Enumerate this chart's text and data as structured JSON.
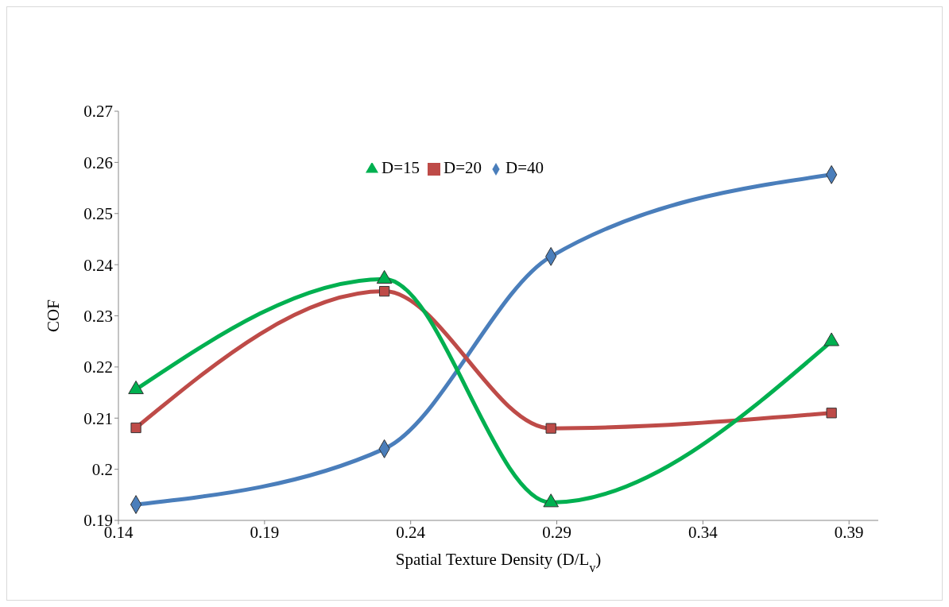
{
  "chart_data": {
    "type": "line",
    "xlabel": "Spatial Texture Density (D/L$_{v}$)",
    "ylabel": "COF",
    "x": [
      0.146,
      0.231,
      0.288,
      0.384
    ],
    "xlim": [
      0.14,
      0.4
    ],
    "xticks": [
      0.14,
      0.19,
      0.24,
      0.29,
      0.34,
      0.39
    ],
    "ylim": [
      0.19,
      0.27
    ],
    "yticks": [
      0.19,
      0.2,
      0.21,
      0.22,
      0.23,
      0.24,
      0.25,
      0.26,
      0.27
    ],
    "series": [
      {
        "name": "D=40",
        "color": "#4a7ebb",
        "marker": "diamond",
        "values": [
          0.1931,
          0.204,
          0.2416,
          0.2576
        ]
      },
      {
        "name": "D=20",
        "color": "#be4b48",
        "marker": "square",
        "values": [
          0.2081,
          0.2348,
          0.208,
          0.211
        ]
      },
      {
        "name": "D=15",
        "color": "#00b050",
        "marker": "triangle",
        "values": [
          0.2156,
          0.2372,
          0.1935,
          0.225
        ]
      }
    ],
    "grid": false,
    "legend": "top",
    "line_style": "solid"
  }
}
